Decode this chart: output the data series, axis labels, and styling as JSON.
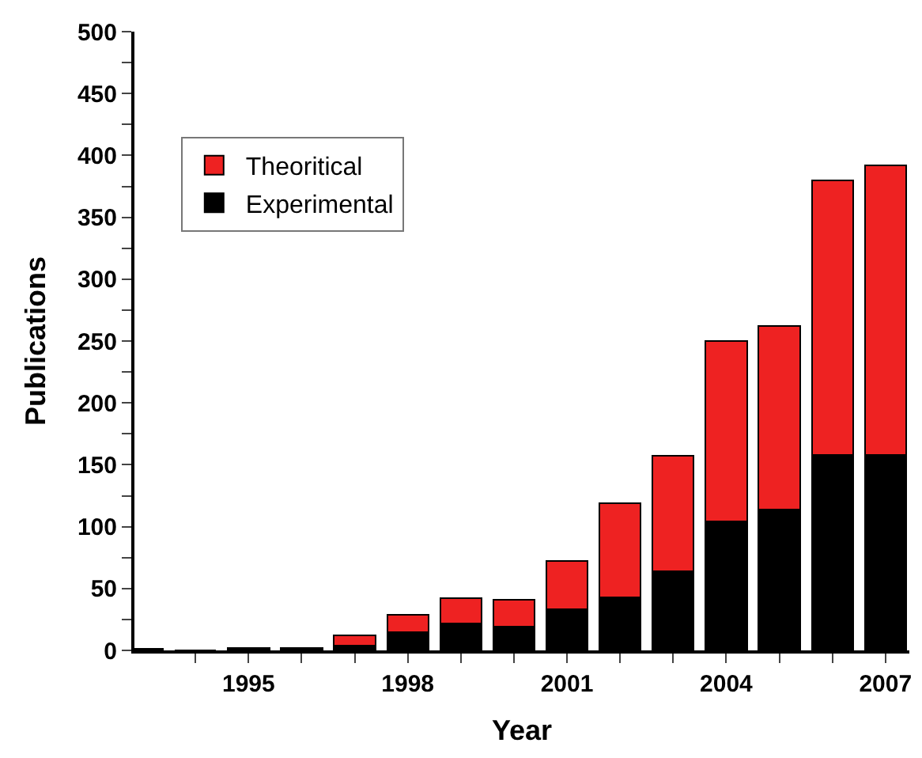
{
  "chart_data": {
    "type": "bar",
    "stacked": true,
    "xlabel": "Year",
    "ylabel": "Publications",
    "x": [
      1993,
      1994,
      1995,
      1996,
      1997,
      1998,
      1999,
      2000,
      2001,
      2002,
      2003,
      2004,
      2005,
      2006,
      2007
    ],
    "series": [
      {
        "name": "Experimental",
        "color": "#000000",
        "values": [
          1,
          0,
          2,
          2,
          4,
          15,
          22,
          19,
          33,
          43,
          64,
          104,
          114,
          158,
          158
        ]
      },
      {
        "name": "Theoritical",
        "color": "#ee2222",
        "values": [
          null,
          null,
          null,
          null,
          8,
          14,
          20,
          22,
          39,
          76,
          93,
          146,
          148,
          222,
          234
        ]
      }
    ],
    "xlim": [
      1992.85,
      2007.45
    ],
    "xticks": [
      {
        "value": 1994,
        "label": null
      },
      1995,
      {
        "value": 1996,
        "label": null
      },
      {
        "value": 1997,
        "label": null
      },
      1998,
      {
        "value": 1999,
        "label": null
      },
      {
        "value": 2000,
        "label": null
      },
      2001,
      {
        "value": 2002,
        "label": null
      },
      {
        "value": 2003,
        "label": null
      },
      2004,
      {
        "value": 2005,
        "label": null
      },
      {
        "value": 2006,
        "label": null
      },
      2007
    ],
    "ylim": [
      0,
      500
    ],
    "yticks": [
      0,
      {
        "value": 25,
        "label": null
      },
      50,
      {
        "value": 75,
        "label": null
      },
      100,
      {
        "value": 125,
        "label": null
      },
      150,
      {
        "value": 175,
        "label": null
      },
      200,
      {
        "value": 225,
        "label": null
      },
      250,
      {
        "value": 275,
        "label": null
      },
      300,
      {
        "value": 325,
        "label": null
      },
      350,
      {
        "value": 375,
        "label": null
      },
      400,
      {
        "value": 425,
        "label": null
      },
      450,
      {
        "value": 475,
        "label": null
      },
      500
    ],
    "legend": "top left"
  }
}
